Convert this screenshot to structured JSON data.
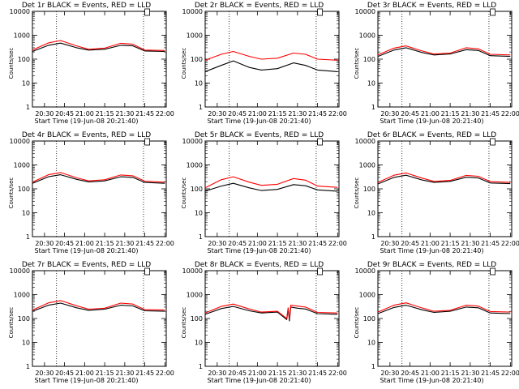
{
  "chart_data": [
    {
      "type": "line",
      "title": "Det 1r BLACK = Events, RED = LLD",
      "xlabel": "Start Time (19-Jun-08 20:21:40)",
      "ylabel": "Counts/sec",
      "yscale": "log",
      "ylim": [
        1,
        10000
      ],
      "xlim": [
        "20:21",
        "22:01"
      ],
      "x_ticks": [
        "20:30",
        "20:45",
        "21:00",
        "21:15",
        "21:30",
        "21:45",
        "22:00"
      ],
      "y_ticks": [
        "1",
        "10",
        "100",
        "1000",
        "10000"
      ],
      "vlines": [
        "20:39",
        "21:44"
      ],
      "marker": "21:45",
      "series": [
        {
          "color": "#000000",
          "x": [
            "20:21",
            "20:33",
            "20:42",
            "20:54",
            "21:03",
            "21:15",
            "21:27",
            "21:36",
            "21:45",
            "22:00"
          ],
          "values": [
            210,
            380,
            470,
            300,
            240,
            260,
            380,
            360,
            220,
            210
          ]
        },
        {
          "color": "#ff0000",
          "x": [
            "20:21",
            "20:33",
            "20:42",
            "20:54",
            "21:03",
            "21:15",
            "21:27",
            "21:36",
            "21:45",
            "22:00"
          ],
          "values": [
            240,
            480,
            600,
            360,
            260,
            290,
            460,
            420,
            240,
            230
          ]
        }
      ]
    },
    {
      "type": "line",
      "title": "Det 2r BLACK = Events, RED = LLD",
      "xlabel": "Start Time (19-Jun-08 20:21:40)",
      "ylabel": "Counts/sec",
      "yscale": "log",
      "ylim": [
        1,
        10000
      ],
      "xlim": [
        "20:21",
        "22:01"
      ],
      "x_ticks": [
        "20:30",
        "20:45",
        "21:00",
        "21:15",
        "21:30",
        "21:45",
        "22:00"
      ],
      "y_ticks": [
        "1",
        "10",
        "100",
        "1000",
        "10000"
      ],
      "vlines": [
        "20:39",
        "21:44"
      ],
      "marker": "21:45",
      "series": [
        {
          "color": "#000000",
          "x": [
            "20:21",
            "20:33",
            "20:42",
            "20:54",
            "21:03",
            "21:15",
            "21:27",
            "21:36",
            "21:45",
            "22:00"
          ],
          "values": [
            30,
            55,
            85,
            45,
            35,
            40,
            70,
            55,
            35,
            30
          ]
        },
        {
          "color": "#ff0000",
          "x": [
            "20:21",
            "20:33",
            "20:42",
            "20:54",
            "21:03",
            "21:15",
            "21:27",
            "21:36",
            "21:45",
            "22:00"
          ],
          "values": [
            90,
            160,
            210,
            130,
            100,
            110,
            180,
            160,
            100,
            90
          ]
        }
      ]
    },
    {
      "type": "line",
      "title": "Det 3r BLACK = Events, RED = LLD",
      "xlabel": "Start Time (19-Jun-08 20:21:40)",
      "ylabel": "Counts/sec",
      "yscale": "log",
      "ylim": [
        1,
        10000
      ],
      "xlim": [
        "20:21",
        "22:01"
      ],
      "x_ticks": [
        "20:30",
        "20:45",
        "21:00",
        "21:15",
        "21:30",
        "21:45",
        "22:00"
      ],
      "y_ticks": [
        "1",
        "10",
        "100",
        "1000",
        "10000"
      ],
      "vlines": [
        "20:39",
        "21:44"
      ],
      "marker": "21:45",
      "series": [
        {
          "color": "#000000",
          "x": [
            "20:21",
            "20:33",
            "20:42",
            "20:54",
            "21:03",
            "21:15",
            "21:27",
            "21:36",
            "21:45",
            "22:00"
          ],
          "values": [
            130,
            240,
            300,
            190,
            150,
            165,
            250,
            230,
            140,
            130
          ]
        },
        {
          "color": "#ff0000",
          "x": [
            "20:21",
            "20:33",
            "20:42",
            "20:54",
            "21:03",
            "21:15",
            "21:27",
            "21:36",
            "21:45",
            "22:00"
          ],
          "values": [
            150,
            290,
            360,
            220,
            165,
            180,
            300,
            270,
            160,
            150
          ]
        }
      ]
    },
    {
      "type": "line",
      "title": "Det 4r BLACK = Events, RED = LLD",
      "xlabel": "Start Time (19-Jun-08 20:21:40)",
      "ylabel": "Counts/sec",
      "yscale": "log",
      "ylim": [
        1,
        10000
      ],
      "xlim": [
        "20:21",
        "22:01"
      ],
      "x_ticks": [
        "20:30",
        "20:45",
        "21:00",
        "21:15",
        "21:30",
        "21:45",
        "22:00"
      ],
      "y_ticks": [
        "1",
        "10",
        "100",
        "1000",
        "10000"
      ],
      "vlines": [
        "20:39",
        "21:44"
      ],
      "marker": "21:45",
      "series": [
        {
          "color": "#000000",
          "x": [
            "20:21",
            "20:33",
            "20:42",
            "20:54",
            "21:03",
            "21:15",
            "21:27",
            "21:36",
            "21:45",
            "22:00"
          ],
          "values": [
            170,
            320,
            390,
            250,
            195,
            215,
            320,
            300,
            185,
            170
          ]
        },
        {
          "color": "#ff0000",
          "x": [
            "20:21",
            "20:33",
            "20:42",
            "20:54",
            "21:03",
            "21:15",
            "21:27",
            "21:36",
            "21:45",
            "22:00"
          ],
          "values": [
            190,
            390,
            480,
            290,
            215,
            240,
            380,
            350,
            210,
            190
          ]
        }
      ]
    },
    {
      "type": "line",
      "title": "Det 5r BLACK = Events, RED = LLD",
      "xlabel": "Start Time (19-Jun-08 20:21:40)",
      "ylabel": "Counts/sec",
      "yscale": "log",
      "ylim": [
        1,
        10000
      ],
      "xlim": [
        "20:21",
        "22:01"
      ],
      "x_ticks": [
        "20:30",
        "20:45",
        "21:00",
        "21:15",
        "21:30",
        "21:45",
        "22:00"
      ],
      "y_ticks": [
        "1",
        "10",
        "100",
        "1000",
        "10000"
      ],
      "vlines": [
        "20:39",
        "21:44"
      ],
      "marker": "21:45",
      "series": [
        {
          "color": "#000000",
          "x": [
            "20:21",
            "20:33",
            "20:42",
            "20:54",
            "21:03",
            "21:15",
            "21:27",
            "21:36",
            "21:45",
            "22:00"
          ],
          "values": [
            80,
            130,
            170,
            110,
            85,
            95,
            150,
            135,
            90,
            80
          ]
        },
        {
          "color": "#ff0000",
          "x": [
            "20:21",
            "20:33",
            "20:42",
            "20:54",
            "21:03",
            "21:15",
            "21:27",
            "21:36",
            "21:45",
            "22:00"
          ],
          "values": [
            110,
            240,
            320,
            190,
            140,
            155,
            270,
            230,
            130,
            115
          ]
        }
      ]
    },
    {
      "type": "line",
      "title": "Det 6r BLACK = Events, RED = LLD",
      "xlabel": "Start Time (19-Jun-08 20:21:40)",
      "ylabel": "Counts/sec",
      "yscale": "log",
      "ylim": [
        1,
        10000
      ],
      "xlim": [
        "20:21",
        "22:01"
      ],
      "x_ticks": [
        "20:30",
        "20:45",
        "21:00",
        "21:15",
        "21:30",
        "21:45",
        "22:00"
      ],
      "y_ticks": [
        "1",
        "10",
        "100",
        "1000",
        "10000"
      ],
      "vlines": [
        "20:39",
        "21:44"
      ],
      "marker": "21:45",
      "series": [
        {
          "color": "#000000",
          "x": [
            "20:21",
            "20:33",
            "20:42",
            "20:54",
            "21:03",
            "21:15",
            "21:27",
            "21:36",
            "21:45",
            "22:00"
          ],
          "values": [
            160,
            300,
            370,
            235,
            185,
            205,
            305,
            285,
            175,
            165
          ]
        },
        {
          "color": "#ff0000",
          "x": [
            "20:21",
            "20:33",
            "20:42",
            "20:54",
            "21:03",
            "21:15",
            "21:27",
            "21:36",
            "21:45",
            "22:00"
          ],
          "values": [
            185,
            370,
            460,
            280,
            205,
            225,
            365,
            335,
            200,
            185
          ]
        }
      ]
    },
    {
      "type": "line",
      "title": "Det 7r BLACK = Events, RED = LLD",
      "xlabel": "Start Time (19-Jun-08 20:21:40)",
      "ylabel": "Counts/sec",
      "yscale": "log",
      "ylim": [
        1,
        10000
      ],
      "xlim": [
        "20:21",
        "22:01"
      ],
      "x_ticks": [
        "20:30",
        "20:45",
        "21:00",
        "21:15",
        "21:30",
        "21:45",
        "22:00"
      ],
      "y_ticks": [
        "1",
        "10",
        "100",
        "1000",
        "10000"
      ],
      "vlines": [
        "20:39",
        "21:44"
      ],
      "marker": "21:45",
      "series": [
        {
          "color": "#000000",
          "x": [
            "20:21",
            "20:33",
            "20:42",
            "20:54",
            "21:03",
            "21:15",
            "21:27",
            "21:36",
            "21:45",
            "22:00"
          ],
          "values": [
            200,
            360,
            440,
            280,
            220,
            245,
            360,
            335,
            210,
            200
          ]
        },
        {
          "color": "#ff0000",
          "x": [
            "20:21",
            "20:33",
            "20:42",
            "20:54",
            "21:03",
            "21:15",
            "21:27",
            "21:36",
            "21:45",
            "22:00"
          ],
          "values": [
            225,
            450,
            560,
            340,
            245,
            270,
            440,
            400,
            235,
            225
          ]
        }
      ]
    },
    {
      "type": "line",
      "title": "Det 8r BLACK = Events, RED = LLD",
      "xlabel": "Start Time (19-Jun-08 20:21:40)",
      "ylabel": "Counts/sec",
      "yscale": "log",
      "ylim": [
        1,
        10000
      ],
      "xlim": [
        "20:21",
        "22:01"
      ],
      "x_ticks": [
        "20:30",
        "20:45",
        "21:00",
        "21:15",
        "21:30",
        "21:45",
        "22:00"
      ],
      "y_ticks": [
        "1",
        "10",
        "100",
        "1000",
        "10000"
      ],
      "vlines": [
        "20:39",
        "21:44"
      ],
      "marker": "21:45",
      "series": [
        {
          "color": "#000000",
          "x": [
            "20:21",
            "20:33",
            "20:42",
            "20:54",
            "21:03",
            "21:15",
            "21:22",
            "21:23",
            "21:24",
            "21:25",
            "21:30",
            "21:36",
            "21:45",
            "22:00"
          ],
          "values": [
            150,
            260,
            320,
            210,
            170,
            185,
            90,
            250,
            80,
            300,
            270,
            250,
            160,
            150
          ]
        },
        {
          "color": "#ff0000",
          "x": [
            "20:21",
            "20:33",
            "20:42",
            "20:54",
            "21:03",
            "21:15",
            "21:22",
            "21:23",
            "21:24",
            "21:25",
            "21:30",
            "21:36",
            "21:45",
            "22:00"
          ],
          "values": [
            170,
            320,
            400,
            250,
            185,
            200,
            100,
            280,
            95,
            360,
            330,
            300,
            180,
            170
          ]
        }
      ]
    },
    {
      "type": "line",
      "title": "Det 9r BLACK = Events, RED = LLD",
      "xlabel": "Start Time (19-Jun-08 20:21:40)",
      "ylabel": "Counts/sec",
      "yscale": "log",
      "ylim": [
        1,
        10000
      ],
      "xlim": [
        "20:21",
        "22:01"
      ],
      "x_ticks": [
        "20:30",
        "20:45",
        "21:00",
        "21:15",
        "21:30",
        "21:45",
        "22:00"
      ],
      "y_ticks": [
        "1",
        "10",
        "100",
        "1000",
        "10000"
      ],
      "vlines": [
        "20:39",
        "21:44"
      ],
      "marker": "21:45",
      "series": [
        {
          "color": "#000000",
          "x": [
            "20:21",
            "20:33",
            "20:42",
            "20:54",
            "21:03",
            "21:15",
            "21:27",
            "21:36",
            "21:45",
            "22:00"
          ],
          "values": [
            160,
            290,
            360,
            230,
            180,
            200,
            300,
            280,
            170,
            160
          ]
        },
        {
          "color": "#ff0000",
          "x": [
            "20:21",
            "20:33",
            "20:42",
            "20:54",
            "21:03",
            "21:15",
            "21:27",
            "21:36",
            "21:45",
            "22:00"
          ],
          "values": [
            185,
            360,
            450,
            275,
            200,
            220,
            360,
            330,
            195,
            185
          ]
        }
      ]
    }
  ]
}
